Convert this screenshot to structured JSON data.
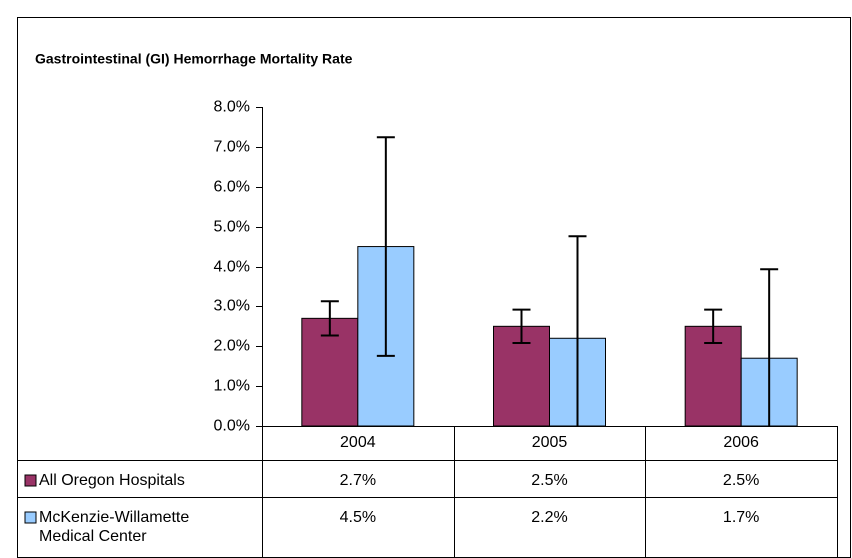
{
  "chart_data": {
    "type": "bar",
    "title": "Gastrointestinal (GI) Hemorrhage Mortality Rate",
    "categories": [
      "2004",
      "2005",
      "2006"
    ],
    "series": [
      {
        "name": "All Oregon Hospitals",
        "color": "#993366",
        "values": [
          2.7,
          2.5,
          2.5
        ],
        "value_labels": [
          "2.7%",
          "2.5%",
          "2.5%"
        ],
        "errors": [
          0.43,
          0.42,
          0.42
        ]
      },
      {
        "name": "McKenzie-Willamette Medical Center",
        "color": "#99ccff",
        "values": [
          4.5,
          2.2,
          1.7
        ],
        "value_labels": [
          "4.5%",
          "2.2%",
          "1.7%"
        ],
        "errors": [
          2.74,
          2.56,
          2.23
        ]
      }
    ],
    "ylim": [
      0,
      8
    ],
    "yticks": [
      {
        "value": 0,
        "label": "0.0%"
      },
      {
        "value": 1,
        "label": "1.0%"
      },
      {
        "value": 2,
        "label": "2.0%"
      },
      {
        "value": 3,
        "label": "3.0%"
      },
      {
        "value": 4,
        "label": "4.0%"
      },
      {
        "value": 5,
        "label": "5.0%"
      },
      {
        "value": 6,
        "label": "6.0%"
      },
      {
        "value": 7,
        "label": "7.0%"
      },
      {
        "value": 8,
        "label": "8.0%"
      }
    ],
    "error_bars": true
  }
}
